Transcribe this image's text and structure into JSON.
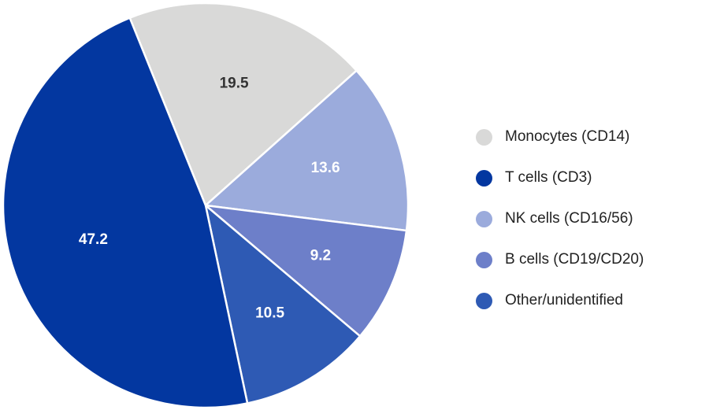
{
  "chart_data": {
    "type": "pie",
    "title": "",
    "slices": [
      {
        "label": "Monocytes (CD14)",
        "value": 19.5,
        "display": "19.5",
        "color": "#d9d9d8",
        "text_color": "#333333"
      },
      {
        "label": "NK cells (CD16/56)",
        "value": 13.6,
        "display": "13.6",
        "color": "#9babdc",
        "text_color": "#ffffff"
      },
      {
        "label": "B cells (CD19/CD20)",
        "value": 9.2,
        "display": "9.2",
        "color": "#6d7fc9",
        "text_color": "#ffffff"
      },
      {
        "label": "Other/unidentified",
        "value": 10.5,
        "display": "10.5",
        "color": "#2e5ab4",
        "text_color": "#ffffff"
      },
      {
        "label": "T cells (CD3)",
        "value": 47.2,
        "display": "47.2",
        "color": "#0337a0",
        "text_color": "#ffffff"
      }
    ],
    "legend_order": [
      "Monocytes (CD14)",
      "T cells (CD3)",
      "NK cells (CD16/56)",
      "B cells (CD19/CD20)",
      "Other/unidentified"
    ],
    "legend_position": "right",
    "start_angle_deg": -22,
    "direction": "clockwise"
  }
}
